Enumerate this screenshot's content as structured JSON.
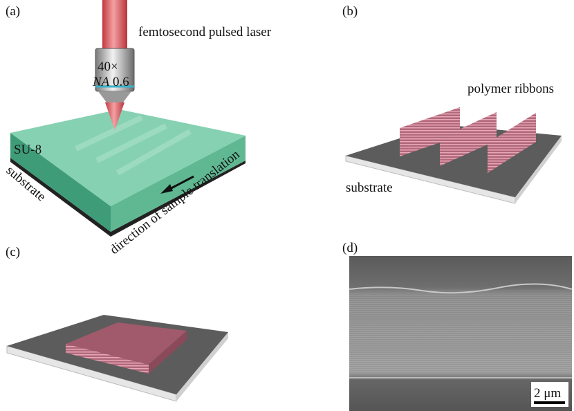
{
  "panels": [
    {
      "label": "(a)",
      "laser": "femtosecond pulsed laser",
      "magnification": "40×",
      "na_symbol": "NA",
      "na_value": "0.6",
      "resist": "SU-8",
      "substrate": "substrate",
      "direction": "direction of sample translation"
    },
    {
      "label": "(b)",
      "ribbons": "polymer ribbons",
      "substrate": "substrate"
    },
    {
      "label": "(c)"
    },
    {
      "label": "(d)",
      "scale_bar": "2 μm"
    }
  ]
}
